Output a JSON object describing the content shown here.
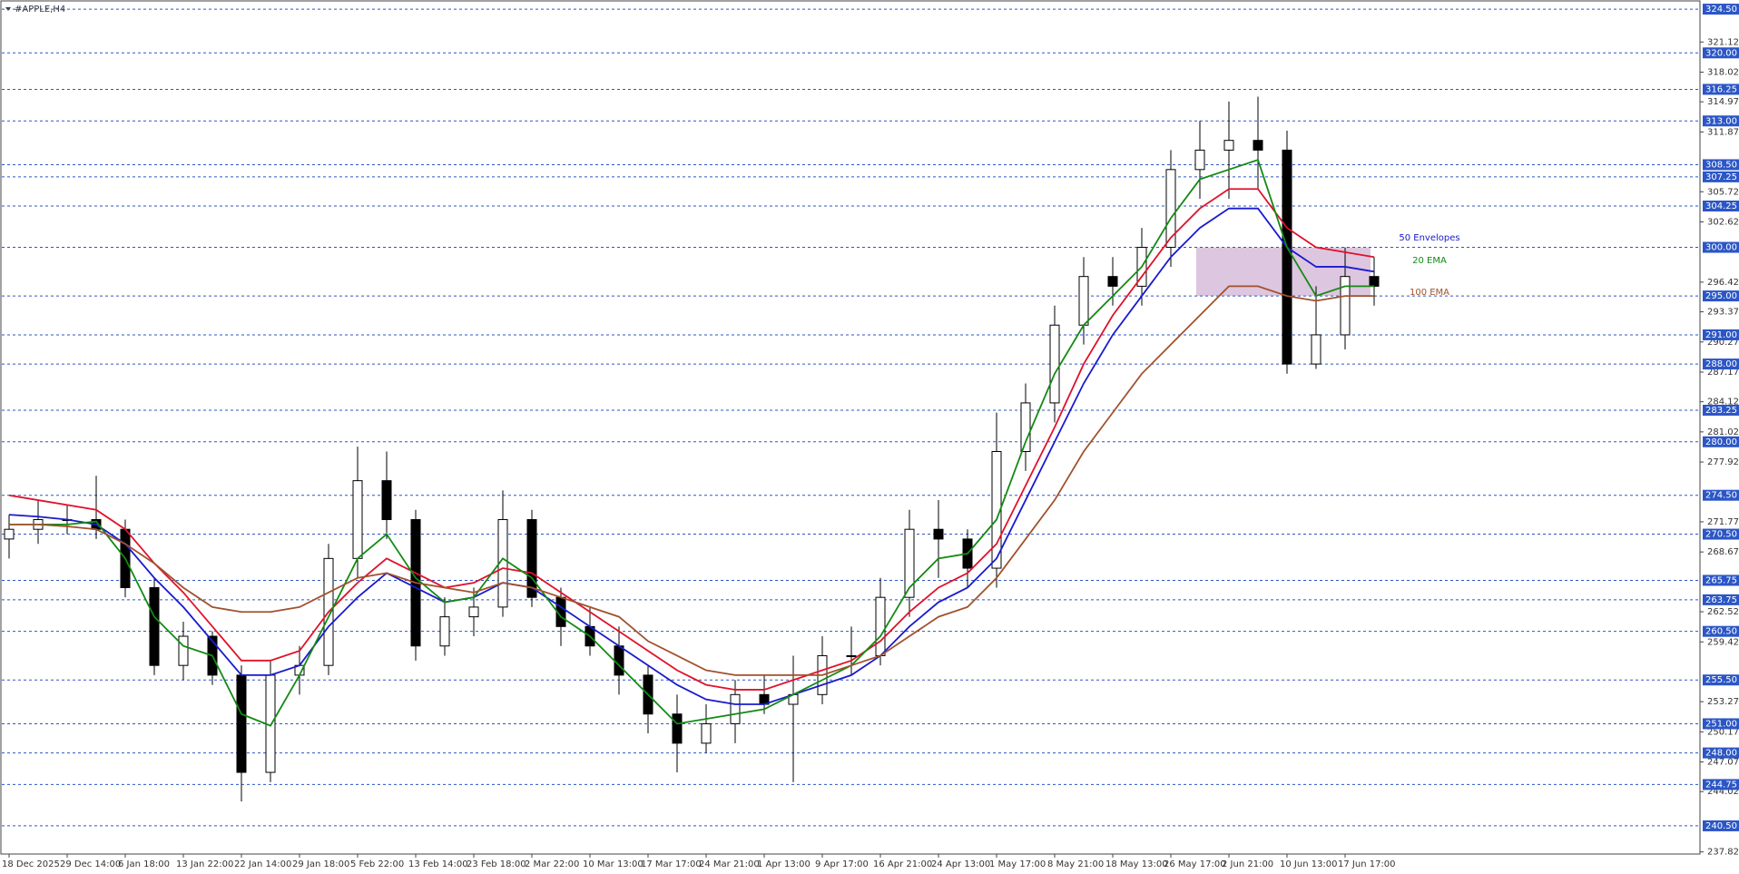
{
  "chart_data": {
    "type": "candlestick",
    "title": "#APPLE,H4",
    "categories": [
      "18 Dec 2025",
      null,
      "29 Dec 14:00",
      null,
      "6 Jan 18:00",
      null,
      "13 Jan 22:00",
      null,
      "22 Jan 14:00",
      null,
      "29 Jan 18:00",
      null,
      "5 Feb 22:00",
      null,
      "13 Feb 14:00",
      null,
      "23 Feb 18:00",
      null,
      "2 Mar 22:00",
      null,
      "10 Mar 13:00",
      null,
      "17 Mar 17:00",
      null,
      "24 Mar 21:00",
      null,
      "1 Apr 13:00",
      null,
      "9 Apr 17:00",
      null,
      "16 Apr 21:00",
      null,
      "24 Apr 13:00",
      null,
      "1 May 17:00",
      null,
      "8 May 21:00",
      null,
      "18 May 13:00",
      null,
      "26 May 17:00",
      null,
      "2 Jun 21:00",
      null,
      "10 Jun 13:00",
      null,
      "17 Jun 17:00",
      null
    ],
    "open": [
      270,
      271,
      272,
      272,
      271,
      265,
      257,
      260,
      256,
      246,
      256,
      257,
      268,
      276,
      272,
      259,
      262,
      263,
      272,
      264,
      261,
      259,
      256,
      252,
      249,
      251,
      254,
      253,
      254,
      258,
      258,
      264,
      271,
      270,
      267,
      279,
      284,
      292,
      297,
      296,
      300,
      308,
      310,
      311,
      310,
      288,
      291,
      297
    ],
    "high": [
      272.5,
      274,
      273.5,
      276.5,
      272,
      266,
      261.5,
      260.5,
      257,
      257.5,
      259,
      269.5,
      279.5,
      279,
      273,
      264,
      265,
      275,
      273,
      265,
      263,
      261,
      257,
      254,
      253,
      255.5,
      256,
      258,
      260,
      261,
      266,
      273,
      274,
      271,
      283,
      286,
      294,
      299,
      299,
      302,
      310,
      313,
      315,
      315.5,
      312,
      296,
      300,
      299
    ],
    "low": [
      268,
      269.5,
      270.5,
      270,
      264,
      256,
      255.5,
      255,
      243,
      245,
      254,
      256,
      266,
      270,
      257.5,
      258,
      260,
      262,
      263,
      259,
      258,
      254,
      250,
      246,
      248,
      249,
      252,
      245,
      253,
      256,
      257,
      262,
      266,
      265,
      265,
      277,
      282,
      290,
      294,
      294,
      298,
      305,
      305,
      306,
      287,
      287.5,
      289.5,
      294
    ],
    "close": [
      271,
      272,
      272,
      271,
      265,
      257,
      260,
      256,
      246,
      256,
      257,
      268,
      276,
      272,
      259,
      262,
      263,
      272,
      264,
      261,
      259,
      256,
      252,
      249,
      251,
      254,
      253,
      254,
      258,
      258,
      264,
      271,
      270,
      267,
      279,
      284,
      292,
      297,
      296,
      300,
      308,
      310,
      311,
      310,
      288,
      291,
      297,
      296
    ],
    "series": [
      {
        "name": "50 Envelopes",
        "color": "#1a1acd",
        "values": [
          272.5,
          272.3,
          272,
          271.5,
          269.5,
          266,
          263,
          259.5,
          256,
          256,
          257,
          261,
          264,
          266.5,
          265,
          263.5,
          264,
          265.5,
          265,
          263,
          261,
          259,
          257,
          255,
          253.5,
          253,
          253,
          254,
          255,
          256,
          258,
          261,
          263.5,
          265,
          268,
          274,
          280,
          286,
          291,
          295,
          299,
          302,
          304,
          304,
          300,
          298,
          298,
          297.5
        ]
      },
      {
        "color": "#e0112b",
        "values": [
          274.5,
          274,
          273.5,
          273,
          271,
          267.5,
          264.5,
          261,
          257.5,
          257.5,
          258.5,
          262.5,
          265.5,
          268,
          266.5,
          265,
          265.5,
          267,
          266.5,
          264.5,
          262.5,
          260.5,
          258.5,
          256.5,
          255,
          254.5,
          254.5,
          255.5,
          256.5,
          257.5,
          259.5,
          262.5,
          265,
          266.5,
          269.5,
          275.5,
          281.5,
          288,
          293,
          297,
          301,
          304,
          306,
          306,
          302,
          300,
          299.5,
          299
        ]
      },
      {
        "name": "20 EMA",
        "color": "#138a13",
        "values": [
          271.5,
          271.5,
          271.5,
          271.8,
          268,
          262,
          259,
          258,
          252,
          250.8,
          256,
          262,
          268,
          270.5,
          266,
          263.5,
          264,
          268,
          266,
          262,
          260,
          257,
          254,
          251,
          251.5,
          252,
          252.5,
          254,
          255.5,
          257,
          260,
          265,
          268,
          268.5,
          272,
          280,
          287,
          292,
          295,
          298,
          303,
          307,
          308,
          309,
          300,
          295,
          296,
          296
        ]
      },
      {
        "name": "100 EMA",
        "color": "#a0522d",
        "values": [
          271.5,
          271.5,
          271.3,
          271,
          269.5,
          267.5,
          265,
          263,
          262.5,
          262.5,
          263,
          264.5,
          266,
          266.5,
          265.5,
          265,
          264.5,
          265.5,
          265,
          264,
          263,
          262,
          259.5,
          258,
          256.5,
          256,
          256,
          256,
          256,
          257,
          258,
          260,
          262,
          263,
          266,
          270,
          274,
          279,
          283,
          287,
          290,
          293,
          296,
          296,
          295,
          294.5,
          295,
          295
        ]
      }
    ],
    "zone": [
      295,
      300
    ],
    "zone_color": "#d7bcd9",
    "ylim": [
      237.6,
      324.6
    ],
    "yticks": [
      321.12,
      318.02,
      314.97,
      311.87,
      305.72,
      302.62,
      296.42,
      293.37,
      290.27,
      287.17,
      284.12,
      281.02,
      277.92,
      271.77,
      268.67,
      262.52,
      259.42,
      253.27,
      250.17,
      247.07,
      244.02,
      237.82
    ],
    "levels": [
      {
        "value": 324.5,
        "label": "324.50"
      },
      {
        "value": 320,
        "label": "320.00"
      },
      {
        "value": 316.25,
        "label": "316.25"
      },
      {
        "value": 313,
        "label": "313.00"
      },
      {
        "value": 308.5,
        "label": "308.50"
      },
      {
        "value": 307.25,
        "label": "307.25"
      },
      {
        "value": 304.25,
        "label": "304.25"
      },
      {
        "value": 300,
        "label": "300.00"
      },
      {
        "value": 295,
        "label": "295.00"
      },
      {
        "value": 291,
        "label": "291.00"
      },
      {
        "value": 288,
        "label": "288.00"
      },
      {
        "value": 283.25,
        "label": "283.25"
      },
      {
        "value": 280,
        "label": "280.00"
      },
      {
        "value": 274.5,
        "label": "274.50"
      },
      {
        "value": 270.5,
        "label": "270.50"
      },
      {
        "value": 265.75,
        "label": "265.75"
      },
      {
        "value": 263.75,
        "label": "263.75"
      },
      {
        "value": 260.5,
        "label": "260.50"
      },
      {
        "value": 255.5,
        "label": "255.50"
      },
      {
        "value": 251,
        "label": "251.00"
      },
      {
        "value": 248,
        "label": "248.00"
      },
      {
        "value": 244.75,
        "label": "244.75"
      },
      {
        "value": 240.5,
        "label": "240.50"
      }
    ],
    "level_color": "#2b56c6"
  }
}
